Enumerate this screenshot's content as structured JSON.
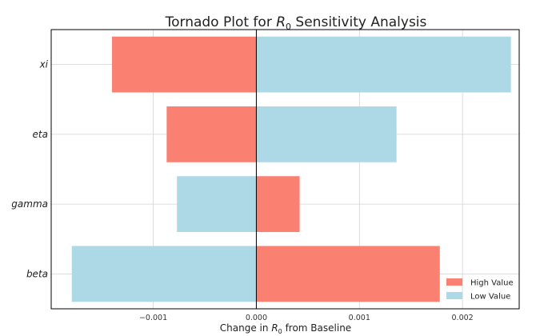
{
  "chart_data": {
    "type": "bar",
    "orientation": "horizontal",
    "title_prefix": "Tornado Plot for ",
    "title_symbol": "R",
    "title_subscript": "0",
    "title_suffix": " Sensitivity Analysis",
    "xlabel_prefix": "Change in ",
    "xlabel_symbol": "R",
    "xlabel_subscript": "0",
    "xlabel_suffix": " from Baseline",
    "ylabel": "",
    "xlim": [
      -0.00199,
      0.00255
    ],
    "xticks": [
      -0.001,
      0.0,
      0.001,
      0.002
    ],
    "xtick_labels": [
      "−0.001",
      "0.000",
      "0.001",
      "0.002"
    ],
    "categories": [
      "xi",
      "eta",
      "gamma",
      "beta"
    ],
    "series": [
      {
        "name": "High Value",
        "color": "#fa8072",
        "values": [
          -0.0014,
          -0.00087,
          0.00042,
          0.00178
        ]
      },
      {
        "name": "Low Value",
        "color": "#add8e6",
        "values": [
          0.00247,
          0.00136,
          -0.00077,
          -0.00179
        ]
      }
    ],
    "grid": true,
    "legend_position": "lower-right"
  }
}
